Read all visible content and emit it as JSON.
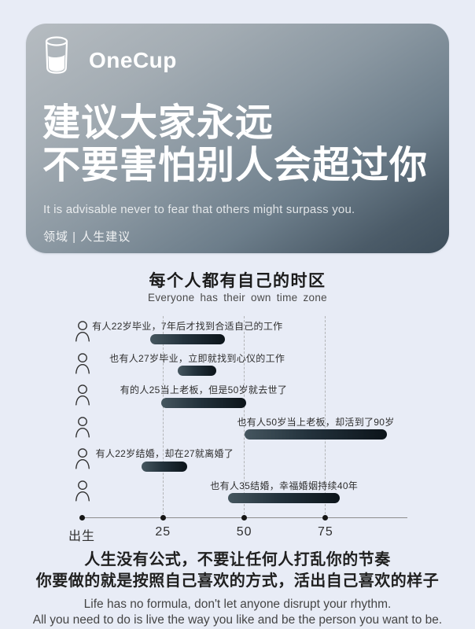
{
  "colors": {
    "page_bg": "#e8ecf6",
    "card_gradient_start": "#b6bcc1",
    "card_gradient_end": "#3e4e5b",
    "bar_gradient_start": "#45565f",
    "bar_gradient_end": "#0c141a",
    "text_on_card": "#ffffff"
  },
  "hero": {
    "brand": "OneCup",
    "title_line1": "建议大家永远",
    "title_line2": "不要害怕别人会超过你",
    "subtitle": "It is advisable never to fear that others might surpass you.",
    "tag": "领域 | 人生建议"
  },
  "chart": {
    "chart_data": {
      "type": "bar",
      "orientation": "horizontal",
      "title": "每个人都有自己的时区",
      "subtitle": "Everyone has their own time zone",
      "x_axis": {
        "ticks": [
          {
            "label": "出生",
            "age": 0
          },
          {
            "label": "25",
            "age": 25
          },
          {
            "label": "50",
            "age": 50
          },
          {
            "label": "75",
            "age": 75
          }
        ],
        "xlim": [
          0,
          100
        ]
      },
      "gridlines_at_ages": [
        25,
        50,
        75
      ],
      "rows": [
        {
          "label": "有人22岁毕业，7年后才找到合适自己的工作",
          "bar_start_age": 21,
          "bar_end_age": 44
        },
        {
          "label": "也有人27岁毕业，立即就找到心仪的工作",
          "bar_start_age": 29.5,
          "bar_end_age": 41.5
        },
        {
          "label": "有的人25当上老板，但是50岁就去世了",
          "bar_start_age": 24.5,
          "bar_end_age": 50.5
        },
        {
          "label": "也有人50岁当上老板，却活到了90岁",
          "bar_start_age": 50,
          "bar_end_age": 94
        },
        {
          "label": "有人22岁结婚，却在27就离婚了",
          "bar_start_age": 18.5,
          "bar_end_age": 32.5
        },
        {
          "label": "也有人35结婚，幸福婚姻持续40年",
          "bar_start_age": 45,
          "bar_end_age": 79.5
        }
      ]
    }
  },
  "footer": {
    "cn_line1": "人生没有公式，不要让任何人打乱你的节奏",
    "cn_line2": "你要做的就是按照自己喜欢的方式，活出自己喜欢的样子",
    "en_line1": "Life has no formula, don't let anyone disrupt your rhythm.",
    "en_line2": "All you need to do is live the way you like and be the person you want to be."
  }
}
